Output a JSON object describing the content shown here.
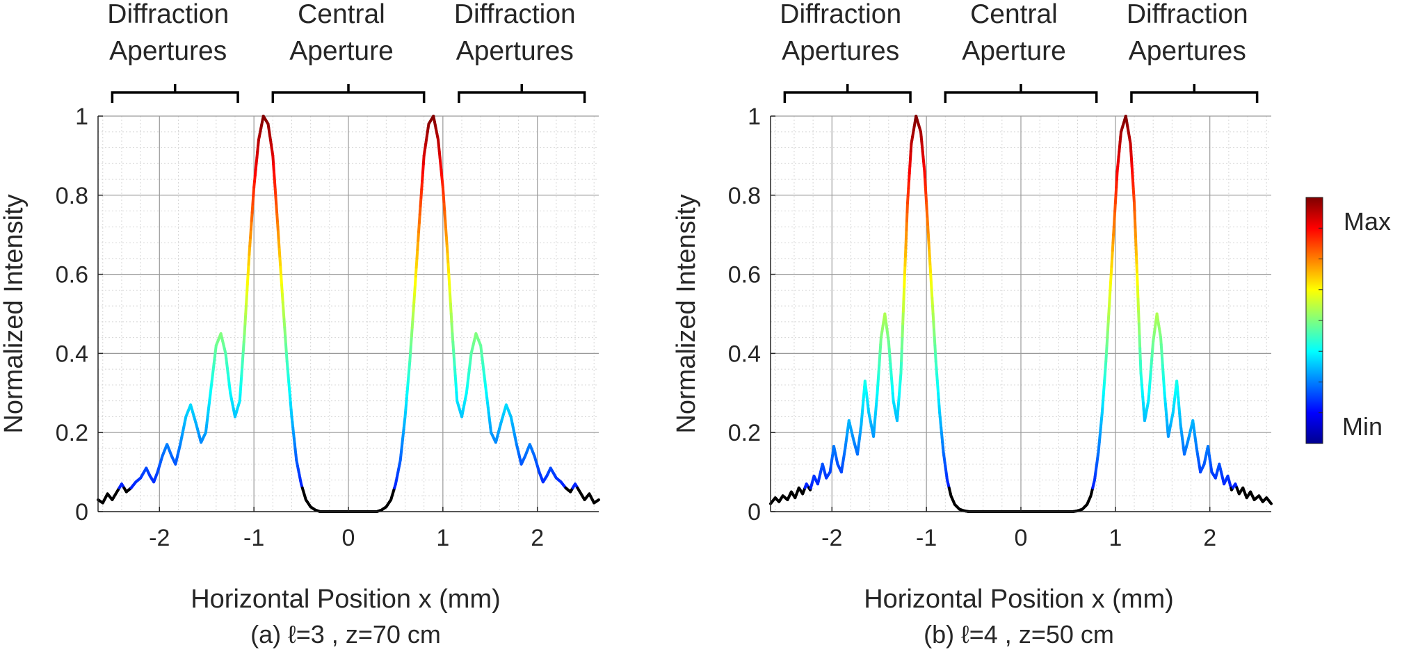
{
  "chart_data": [
    {
      "type": "line",
      "caption": "(a)  ℓ=3 , z=70 cm",
      "xlabel": "Horizontal Position x (mm)",
      "ylabel": "Normalized Intensity",
      "xlim": [
        -2.65,
        2.65
      ],
      "ylim": [
        0,
        1
      ],
      "xticks": [
        -2,
        -1,
        0,
        1,
        2
      ],
      "xtick_labels": [
        "-2",
        "-1",
        "0",
        "1",
        "2"
      ],
      "yticks": [
        0,
        0.2,
        0.4,
        0.6,
        0.8,
        1
      ],
      "ytick_labels": [
        "0",
        "0.2",
        "0.4",
        "0.6",
        "0.8",
        "1"
      ],
      "grid": true,
      "minor_grid": true,
      "line_coloring": "jet colormap by intensity",
      "regions": [
        {
          "label_line1": "Diffraction",
          "label_line2": "Apertures",
          "x_range": [
            -2.5,
            -1.17
          ]
        },
        {
          "label_line1": "Central",
          "label_line2": "Aperture",
          "x_range": [
            -0.8,
            0.8
          ]
        },
        {
          "label_line1": "Diffraction",
          "label_line2": "Apertures",
          "x_range": [
            1.17,
            2.5
          ]
        }
      ],
      "series": [
        {
          "x": [
            -2.65,
            -2.6,
            -2.55,
            -2.5,
            -2.45,
            -2.4,
            -2.35,
            -2.3,
            -2.25,
            -2.2,
            -2.14,
            -2.1,
            -2.06,
            -2.02,
            -1.97,
            -1.92,
            -1.87,
            -1.83,
            -1.78,
            -1.72,
            -1.67,
            -1.61,
            -1.56,
            -1.51,
            -1.46,
            -1.4,
            -1.35,
            -1.3,
            -1.25,
            -1.2,
            -1.15,
            -1.1,
            -1.05,
            -1.0,
            -0.95,
            -0.9,
            -0.85,
            -0.8,
            -0.75,
            -0.7,
            -0.65,
            -0.6,
            -0.55,
            -0.5,
            -0.45,
            -0.4,
            -0.35,
            -0.3,
            -0.2,
            -0.1,
            0.0,
            0.1,
            0.2,
            0.3,
            0.35,
            0.4,
            0.45,
            0.5,
            0.55,
            0.6,
            0.65,
            0.7,
            0.75,
            0.8,
            0.85,
            0.9,
            0.95,
            1.0,
            1.05,
            1.1,
            1.15,
            1.2,
            1.25,
            1.3,
            1.35,
            1.4,
            1.46,
            1.51,
            1.56,
            1.61,
            1.67,
            1.72,
            1.78,
            1.83,
            1.87,
            1.92,
            1.97,
            2.02,
            2.06,
            2.1,
            2.14,
            2.2,
            2.25,
            2.3,
            2.35,
            2.4,
            2.45,
            2.5,
            2.55,
            2.6,
            2.65
          ],
          "y": [
            0.03,
            0.022,
            0.045,
            0.03,
            0.05,
            0.07,
            0.05,
            0.06,
            0.075,
            0.085,
            0.11,
            0.09,
            0.075,
            0.1,
            0.14,
            0.17,
            0.14,
            0.12,
            0.17,
            0.24,
            0.27,
            0.22,
            0.175,
            0.2,
            0.3,
            0.42,
            0.45,
            0.4,
            0.3,
            0.24,
            0.28,
            0.45,
            0.65,
            0.82,
            0.94,
            1.0,
            0.98,
            0.9,
            0.73,
            0.55,
            0.38,
            0.24,
            0.13,
            0.07,
            0.03,
            0.012,
            0.004,
            0.0,
            0.0,
            0.0,
            0.0,
            0.0,
            0.0,
            0.0,
            0.004,
            0.012,
            0.03,
            0.07,
            0.13,
            0.24,
            0.38,
            0.55,
            0.73,
            0.9,
            0.98,
            1.0,
            0.94,
            0.82,
            0.65,
            0.45,
            0.28,
            0.24,
            0.3,
            0.4,
            0.45,
            0.42,
            0.3,
            0.2,
            0.175,
            0.22,
            0.27,
            0.24,
            0.17,
            0.12,
            0.14,
            0.17,
            0.14,
            0.1,
            0.075,
            0.09,
            0.11,
            0.085,
            0.075,
            0.06,
            0.05,
            0.07,
            0.05,
            0.03,
            0.045,
            0.022,
            0.03
          ]
        }
      ]
    },
    {
      "type": "line",
      "caption": "(b)  ℓ=4 , z=50 cm",
      "xlabel": "Horizontal Position x (mm)",
      "ylabel": "Normalized Intensity",
      "xlim": [
        -2.65,
        2.65
      ],
      "ylim": [
        0,
        1
      ],
      "xticks": [
        -2,
        -1,
        0,
        1,
        2
      ],
      "xtick_labels": [
        "-2",
        "-1",
        "0",
        "1",
        "2"
      ],
      "yticks": [
        0,
        0.2,
        0.4,
        0.6,
        0.8,
        1
      ],
      "ytick_labels": [
        "0",
        "0.2",
        "0.4",
        "0.6",
        "0.8",
        "1"
      ],
      "grid": true,
      "minor_grid": true,
      "line_coloring": "jet colormap by intensity",
      "regions": [
        {
          "label_line1": "Diffraction",
          "label_line2": "Apertures",
          "x_range": [
            -2.5,
            -1.17
          ]
        },
        {
          "label_line1": "Central",
          "label_line2": "Aperture",
          "x_range": [
            -0.8,
            0.8
          ]
        },
        {
          "label_line1": "Diffraction",
          "label_line2": "Apertures",
          "x_range": [
            1.17,
            2.5
          ]
        }
      ],
      "series": [
        {
          "x": [
            -2.65,
            -2.6,
            -2.56,
            -2.52,
            -2.47,
            -2.43,
            -2.39,
            -2.35,
            -2.31,
            -2.27,
            -2.23,
            -2.19,
            -2.15,
            -2.1,
            -2.06,
            -2.02,
            -1.98,
            -1.94,
            -1.9,
            -1.86,
            -1.82,
            -1.77,
            -1.73,
            -1.69,
            -1.65,
            -1.61,
            -1.56,
            -1.52,
            -1.48,
            -1.44,
            -1.4,
            -1.35,
            -1.31,
            -1.27,
            -1.23,
            -1.2,
            -1.16,
            -1.11,
            -1.06,
            -1.02,
            -0.98,
            -0.94,
            -0.9,
            -0.86,
            -0.82,
            -0.78,
            -0.74,
            -0.7,
            -0.65,
            -0.6,
            -0.55,
            -0.5,
            -0.45,
            -0.4,
            -0.35,
            -0.3,
            -0.2,
            -0.1,
            0.0,
            0.1,
            0.2,
            0.3,
            0.35,
            0.4,
            0.45,
            0.5,
            0.55,
            0.6,
            0.65,
            0.7,
            0.74,
            0.78,
            0.82,
            0.86,
            0.9,
            0.94,
            0.98,
            1.02,
            1.06,
            1.11,
            1.16,
            1.2,
            1.23,
            1.27,
            1.31,
            1.35,
            1.4,
            1.44,
            1.48,
            1.52,
            1.56,
            1.61,
            1.65,
            1.69,
            1.73,
            1.77,
            1.82,
            1.86,
            1.9,
            1.94,
            1.98,
            2.02,
            2.06,
            2.1,
            2.15,
            2.19,
            2.23,
            2.27,
            2.31,
            2.35,
            2.39,
            2.43,
            2.47,
            2.52,
            2.56,
            2.6,
            2.65
          ],
          "y": [
            0.02,
            0.035,
            0.025,
            0.04,
            0.03,
            0.05,
            0.035,
            0.06,
            0.045,
            0.07,
            0.055,
            0.09,
            0.07,
            0.12,
            0.085,
            0.1,
            0.165,
            0.12,
            0.1,
            0.16,
            0.23,
            0.18,
            0.145,
            0.22,
            0.33,
            0.25,
            0.19,
            0.3,
            0.44,
            0.5,
            0.43,
            0.28,
            0.23,
            0.35,
            0.6,
            0.78,
            0.93,
            1.0,
            0.96,
            0.86,
            0.7,
            0.54,
            0.38,
            0.25,
            0.15,
            0.08,
            0.04,
            0.018,
            0.006,
            0.002,
            0.0,
            0.0,
            0.0,
            0.0,
            0.0,
            0.0,
            0.0,
            0.0,
            0.0,
            0.0,
            0.0,
            0.0,
            0.0,
            0.0,
            0.0,
            0.0,
            0.0,
            0.002,
            0.006,
            0.018,
            0.04,
            0.08,
            0.15,
            0.25,
            0.38,
            0.54,
            0.7,
            0.86,
            0.96,
            1.0,
            0.93,
            0.78,
            0.6,
            0.35,
            0.23,
            0.28,
            0.43,
            0.5,
            0.44,
            0.3,
            0.19,
            0.25,
            0.33,
            0.22,
            0.145,
            0.18,
            0.23,
            0.16,
            0.1,
            0.12,
            0.165,
            0.1,
            0.085,
            0.12,
            0.07,
            0.09,
            0.055,
            0.07,
            0.045,
            0.06,
            0.035,
            0.05,
            0.03,
            0.04,
            0.025,
            0.035,
            0.02
          ]
        }
      ]
    }
  ],
  "colorbar": {
    "max_label": "Max",
    "min_label": "Min",
    "colors": [
      "#00008f",
      "#0000ff",
      "#007fff",
      "#00ffff",
      "#7fff7f",
      "#ffff00",
      "#ff7f00",
      "#ff0000",
      "#7f0000"
    ],
    "low_color": "#000000"
  },
  "styles": {
    "axis_color": "#262626",
    "major_grid_color": "#9a9a9a",
    "minor_grid_color": "#d6d6d6"
  }
}
